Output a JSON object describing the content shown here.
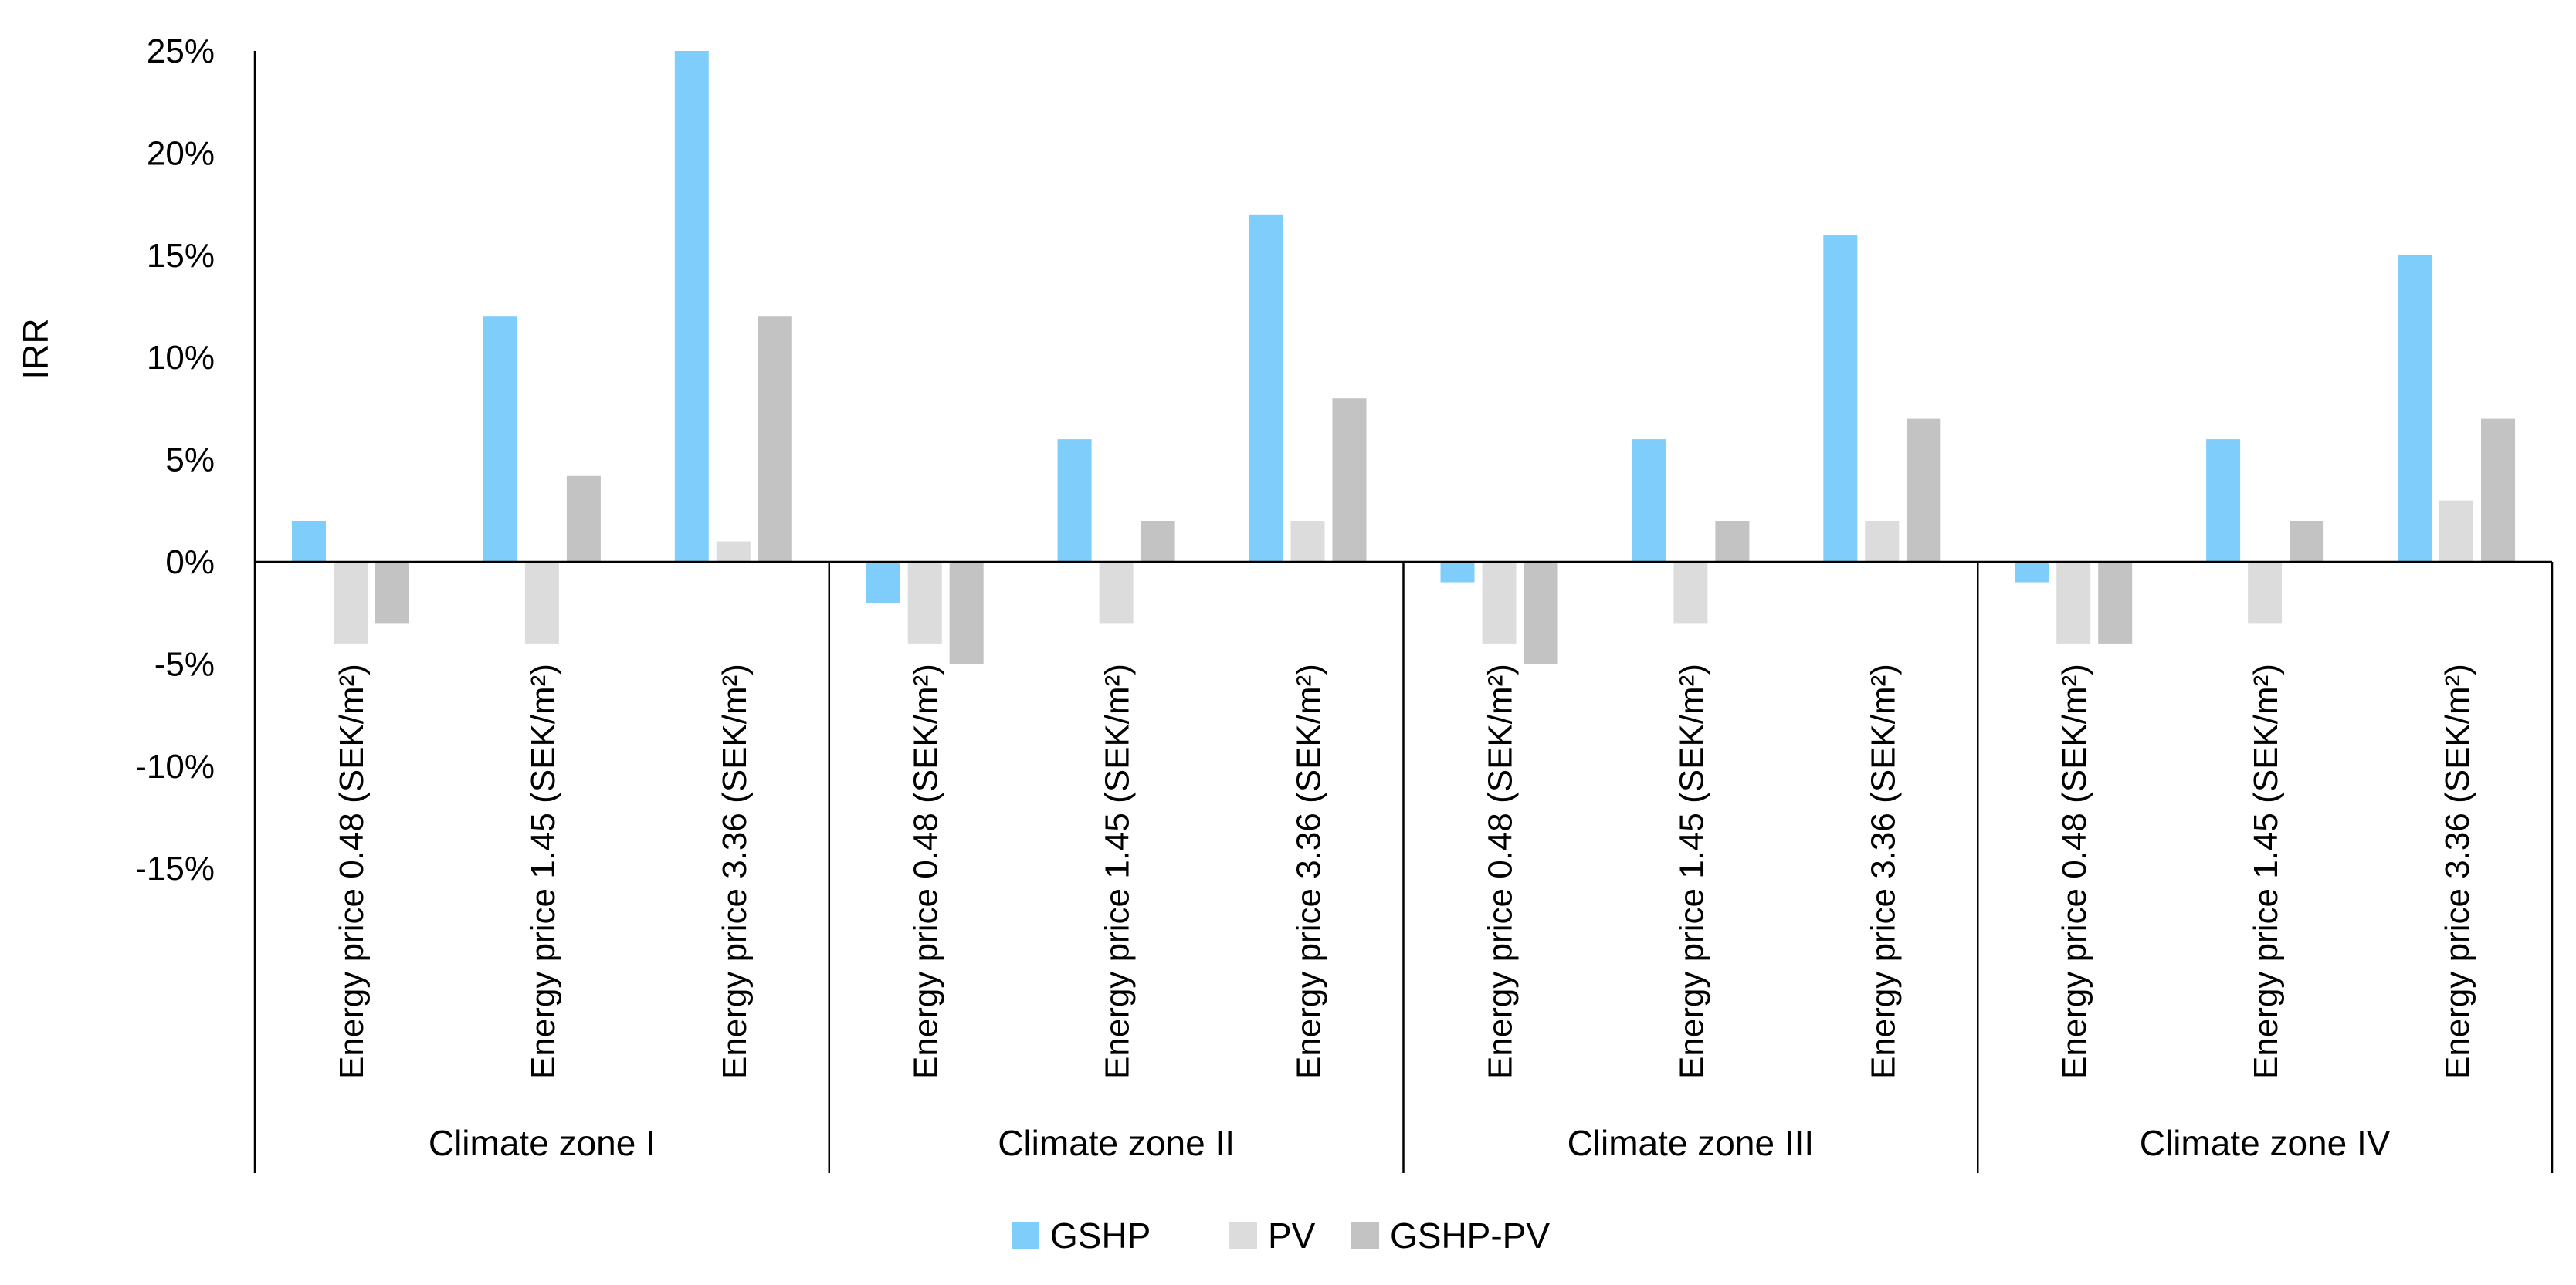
{
  "chart_data": {
    "type": "bar",
    "ylabel": "IRR",
    "ylim": [
      -15,
      25
    ],
    "yticks": [
      25,
      20,
      15,
      10,
      5,
      0,
      -5,
      -10,
      -15
    ],
    "ytick_labels": [
      "25%",
      "20%",
      "15%",
      "10%",
      "5%",
      "0%",
      "-5%",
      "-10%",
      "-15%"
    ],
    "categories": [
      "Energy price 0.48 (SEK/m²)",
      "Energy price 1.45 (SEK/m²)",
      "Energy price 3.36 (SEK/m²)",
      "Energy price 0.48 (SEK/m²)",
      "Energy price 1.45 (SEK/m²)",
      "Energy price 3.36 (SEK/m²)",
      "Energy price 0.48 (SEK/m²)",
      "Energy price 1.45 (SEK/m²)",
      "Energy price 3.36 (SEK/m²)",
      "Energy price 0.48 (SEK/m²)",
      "Energy price 1.45 (SEK/m²)",
      "Energy price 3.36 (SEK/m²)"
    ],
    "groups": [
      "Climate zone I",
      "Climate zone II",
      "Climate zone III",
      "Climate zone IV"
    ],
    "series": [
      {
        "name": "GSHP",
        "color": "#7fcdfa",
        "values": [
          2,
          12,
          25,
          -2,
          6,
          17,
          -1,
          6,
          16,
          -1,
          6,
          15
        ]
      },
      {
        "name": "PV",
        "color": "#dcdcdc",
        "values": [
          -4,
          -4,
          1,
          -4,
          -3,
          2,
          -4,
          -3,
          2,
          -4,
          -3,
          3
        ]
      },
      {
        "name": "GSHP-PV",
        "color": "#c3c3c3",
        "values": [
          -3,
          4.2,
          12,
          -5,
          2,
          8,
          -5,
          2,
          7,
          -4,
          2,
          7
        ]
      }
    ],
    "legend_position": "bottom-center",
    "grid": false
  }
}
